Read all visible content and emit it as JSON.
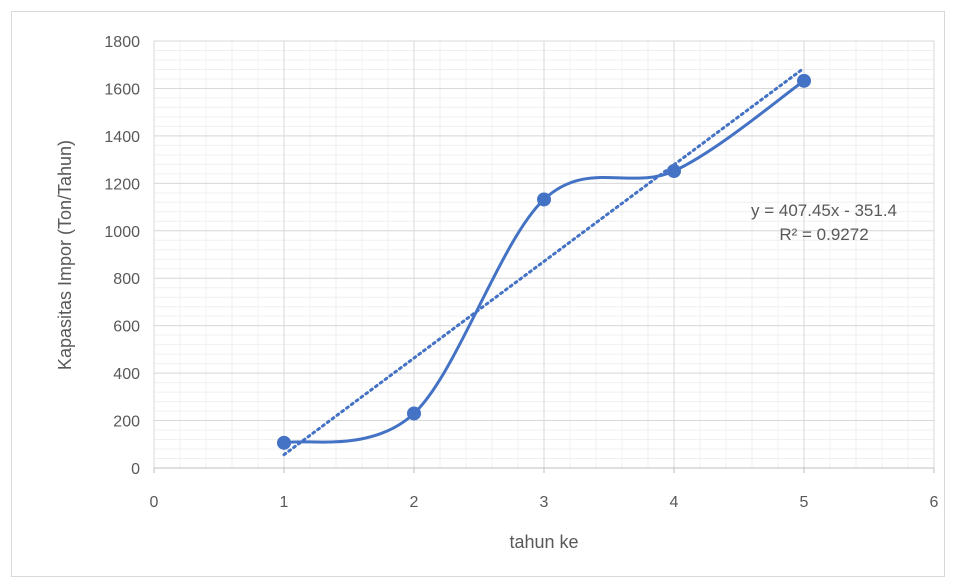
{
  "chart_data": {
    "type": "scatter",
    "xlabel": "tahun ke",
    "ylabel": "Kapasitas Impor (Ton/Tahun)",
    "xlim": [
      0,
      6
    ],
    "ylim": [
      0,
      1800
    ],
    "x_ticks": [
      0,
      1,
      2,
      3,
      4,
      5,
      6
    ],
    "y_ticks": [
      0,
      200,
      400,
      600,
      800,
      1000,
      1200,
      1400,
      1600,
      1800
    ],
    "grid": true,
    "series": [
      {
        "x": [
          1,
          2,
          3,
          4,
          5
        ],
        "y": [
          106,
          230,
          1132,
          1252,
          1632
        ],
        "color": "#4472c4",
        "line": "smooth",
        "marker": "circle"
      }
    ],
    "trendline": {
      "type": "linear",
      "slope": 407.45,
      "intercept": -351.4,
      "x_range": [
        1,
        5
      ],
      "color": "#4472c4",
      "style": "dotted",
      "equation_label": "y = 407.45x - 351.4",
      "r2_label": "R² = 0.9272"
    }
  }
}
